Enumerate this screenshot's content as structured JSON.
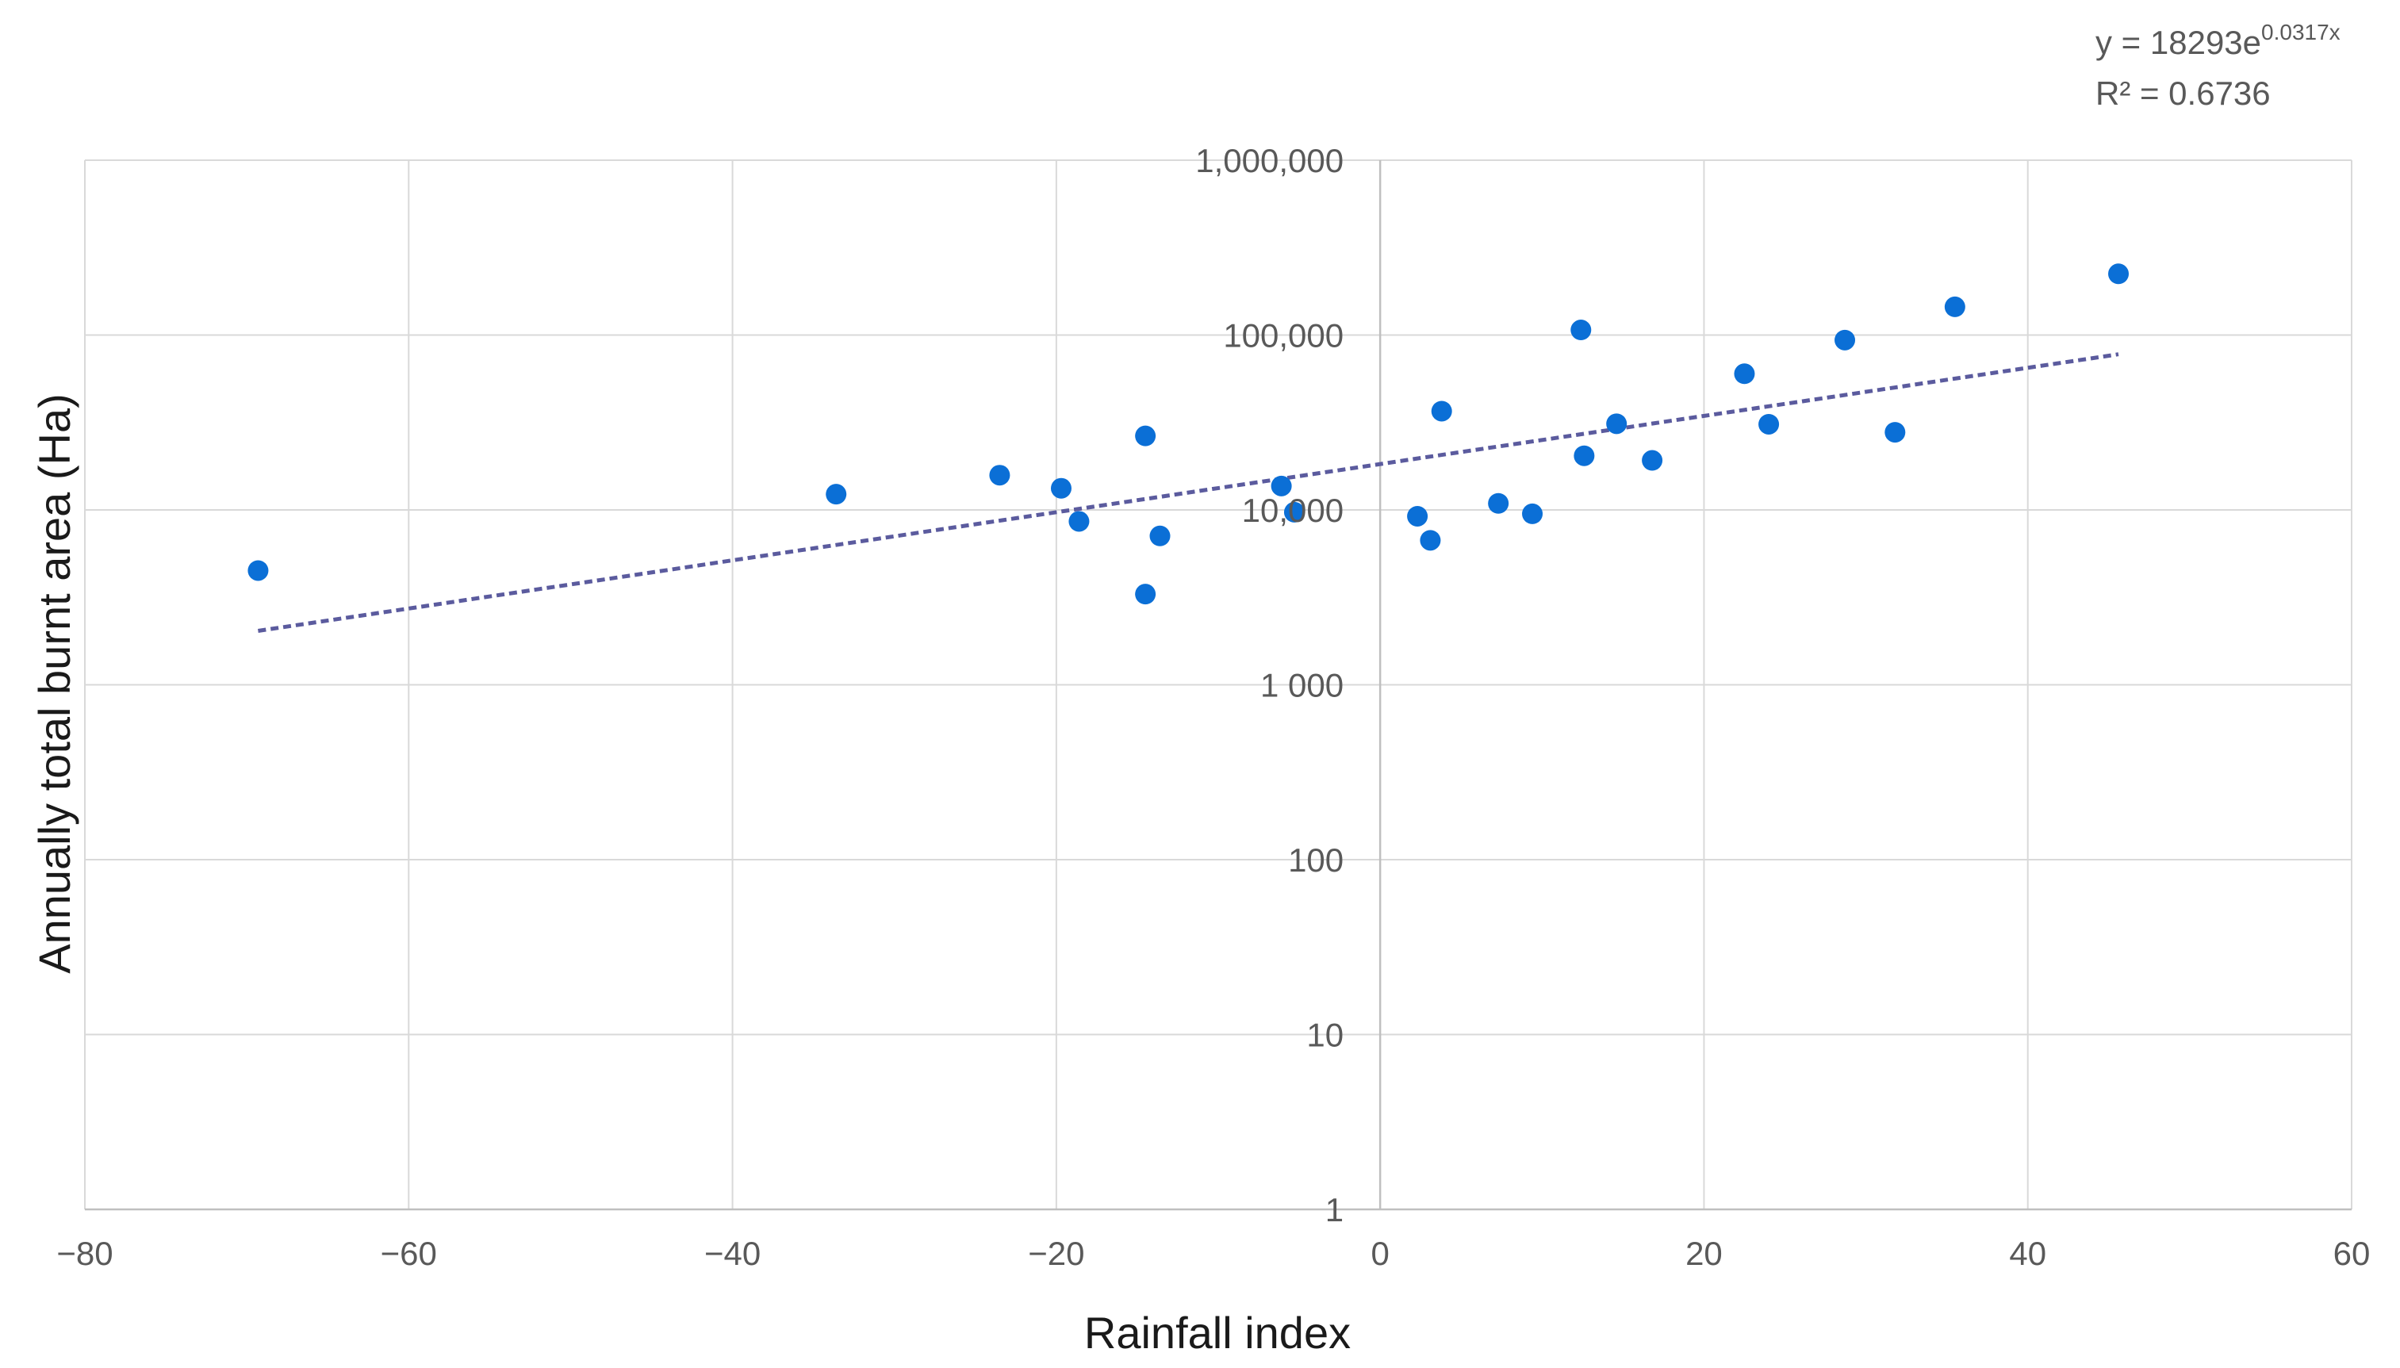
{
  "chart_data": {
    "type": "scatter",
    "title": "",
    "xlabel": "Rainfall index",
    "ylabel": "Annually total burnt area (Ha)",
    "xlim": [
      -80,
      60
    ],
    "ylim": [
      1,
      1000000
    ],
    "yscale": "log",
    "grid": true,
    "x_ticks": [
      -80,
      -60,
      -40,
      -20,
      0,
      20,
      40,
      60
    ],
    "x_tick_labels": [
      "−80",
      "−60",
      "−40",
      "−20",
      "0",
      "20",
      "40",
      "60"
    ],
    "y_ticks": [
      1,
      10,
      100,
      1000,
      10000,
      100000,
      1000000
    ],
    "y_tick_labels": [
      "1",
      "10",
      "100",
      "1 000",
      "10,000",
      "100,000",
      "1,000,000"
    ],
    "series": [
      {
        "name": "Burnt area",
        "color": "#0b6fd6",
        "points": [
          {
            "x": -69.3,
            "y": 4500
          },
          {
            "x": -33.6,
            "y": 12300
          },
          {
            "x": -23.5,
            "y": 15800
          },
          {
            "x": -19.7,
            "y": 13300
          },
          {
            "x": -18.6,
            "y": 8600
          },
          {
            "x": -14.5,
            "y": 26500
          },
          {
            "x": -14.5,
            "y": 3300
          },
          {
            "x": -13.6,
            "y": 7100
          },
          {
            "x": -6.1,
            "y": 13700
          },
          {
            "x": -5.3,
            "y": 9700
          },
          {
            "x": 2.3,
            "y": 9200
          },
          {
            "x": 3.1,
            "y": 6700
          },
          {
            "x": 3.8,
            "y": 36700
          },
          {
            "x": 7.3,
            "y": 10900
          },
          {
            "x": 9.4,
            "y": 9500
          },
          {
            "x": 12.4,
            "y": 107000
          },
          {
            "x": 12.6,
            "y": 20400
          },
          {
            "x": 14.6,
            "y": 31100
          },
          {
            "x": 16.8,
            "y": 19200
          },
          {
            "x": 22.5,
            "y": 60100
          },
          {
            "x": 24.0,
            "y": 30900
          },
          {
            "x": 28.7,
            "y": 93600
          },
          {
            "x": 31.8,
            "y": 27800
          },
          {
            "x": 35.5,
            "y": 145000
          },
          {
            "x": 45.6,
            "y": 224000
          }
        ]
      }
    ],
    "trendline": {
      "type": "exponential",
      "a": 18293,
      "b": 0.0317,
      "x_range": [
        -69.3,
        45.6
      ],
      "color": "#5b5b9e",
      "style": "dashed",
      "equation_prefix": "y = 18293e",
      "equation_exponent": "0.0317x",
      "r_squared_label": "R² = 0.6736"
    }
  }
}
